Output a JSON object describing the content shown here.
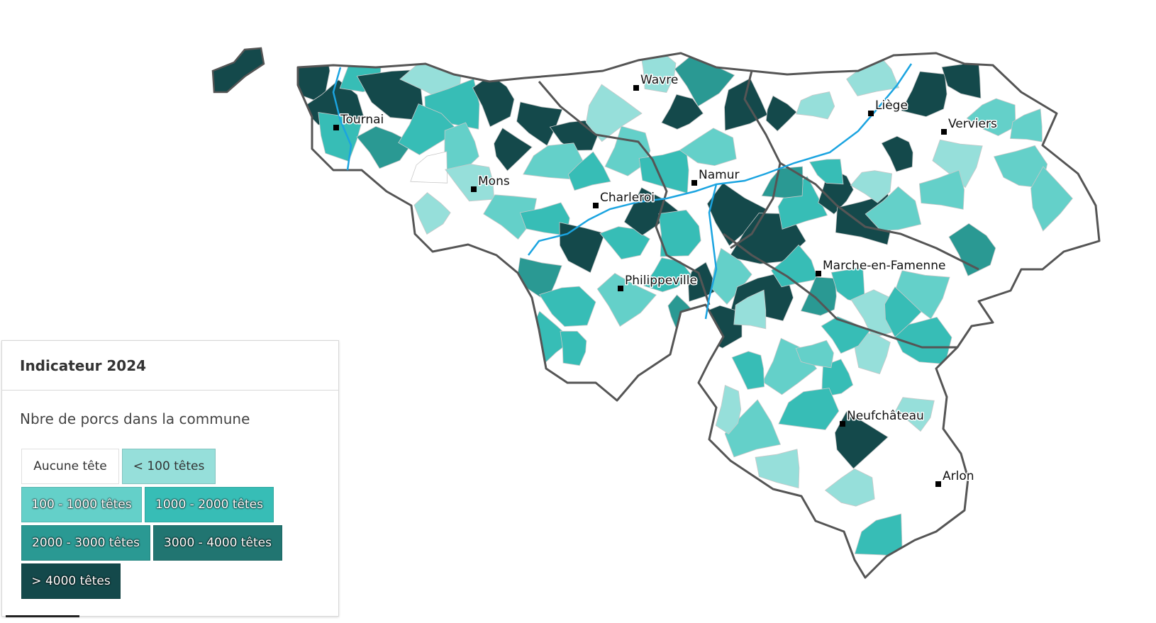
{
  "legend": {
    "title": "Indicateur 2024",
    "subtitle": "Nbre de porcs dans la commune",
    "classes": [
      {
        "label": "Aucune tête",
        "color": "#ffffff",
        "text": "light"
      },
      {
        "label": "< 100 têtes",
        "color": "#96dfda",
        "text": "light"
      },
      {
        "label": "100 - 1000 têtes",
        "color": "#64d0c9",
        "text": "dark"
      },
      {
        "label": "1000 - 2000 têtes",
        "color": "#37bdb6",
        "text": "dark"
      },
      {
        "label": "2000 - 3000 têtes",
        "color": "#2a9993",
        "text": "dark"
      },
      {
        "label": "3000 - 4000 têtes",
        "color": "#217571",
        "text": "dark"
      },
      {
        "label": "> 4000 têtes",
        "color": "#14494b",
        "text": "dark"
      }
    ]
  },
  "cities": [
    {
      "id": "wavre",
      "name": "Wavre"
    },
    {
      "id": "tournai",
      "name": "Tournai"
    },
    {
      "id": "liege",
      "name": "Liège"
    },
    {
      "id": "verviers",
      "name": "Verviers"
    },
    {
      "id": "namur",
      "name": "Namur"
    },
    {
      "id": "mons",
      "name": "Mons"
    },
    {
      "id": "charleroi",
      "name": "Charleroi"
    },
    {
      "id": "marche",
      "name": "Marche-en-Famenne"
    },
    {
      "id": "philippeville",
      "name": "Philippeville"
    },
    {
      "id": "neufchateau",
      "name": "Neufchâteau"
    },
    {
      "id": "arlon",
      "name": "Arlon"
    }
  ],
  "colors": {
    "province_border": "#555555",
    "commune_border": "#c8c8c8",
    "river": "#1ba4e0"
  }
}
